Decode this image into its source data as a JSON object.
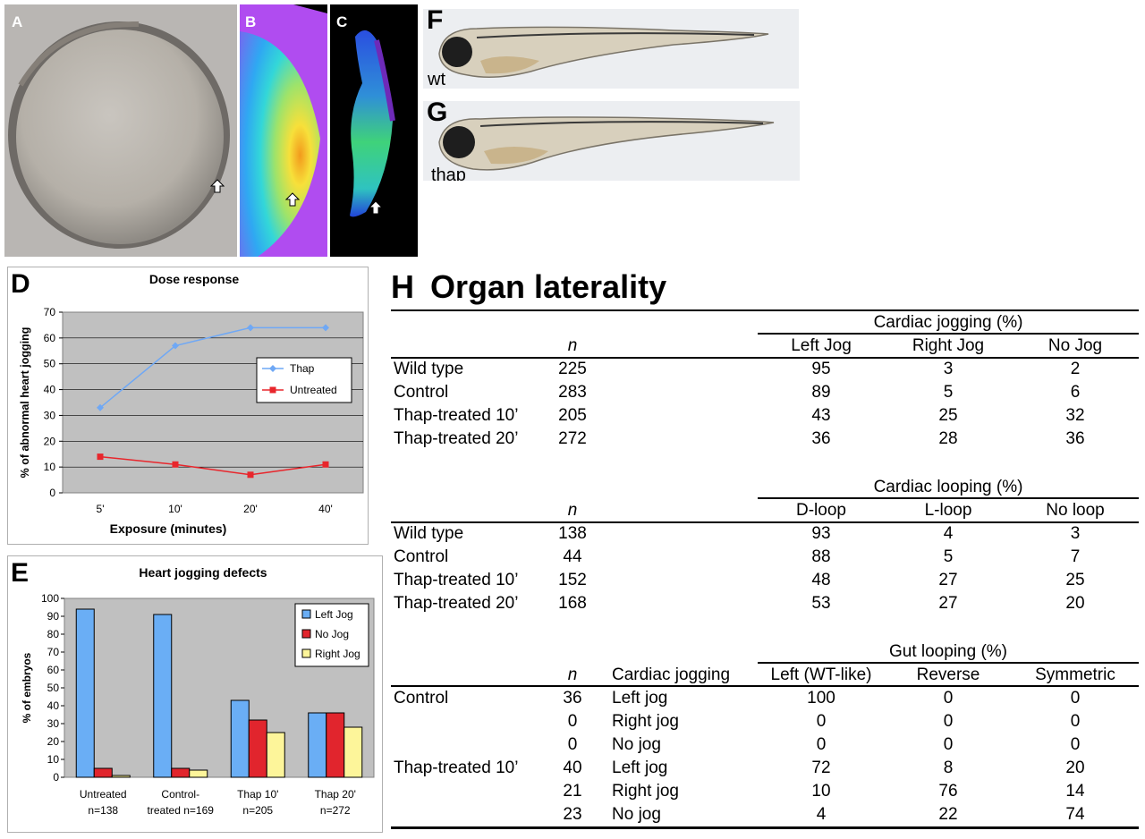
{
  "panels": {
    "a": "A",
    "b": "B",
    "c": "C",
    "d": "D",
    "e": "E",
    "f": "F",
    "g": "G",
    "h": "H"
  },
  "fish_labels": {
    "wt": "wt",
    "thap": "thap"
  },
  "colors": {
    "thap_line": "#6fa8f5",
    "untreated_line": "#e8262c",
    "bar_left_jog": "#6aaef5",
    "bar_no_jog": "#e1252d",
    "bar_right_jog": "#fdf59a",
    "plot_bg": "#c0c0c0"
  },
  "chart_data": [
    {
      "type": "line",
      "title": "Dose response",
      "xlabel": "Exposure (minutes)",
      "ylabel": "% of abnormal heart jogging",
      "categories": [
        "5'",
        "10'",
        "20'",
        "40'"
      ],
      "ylim": [
        0,
        70
      ],
      "yticks": [
        "0",
        "10",
        "20",
        "30",
        "40",
        "50",
        "60",
        "70"
      ],
      "legend_position": "right",
      "series": [
        {
          "name": "Thap",
          "values": [
            33,
            57,
            64,
            64
          ]
        },
        {
          "name": "Untreated",
          "values": [
            14,
            11,
            7,
            11
          ]
        }
      ]
    },
    {
      "type": "bar",
      "title": "Heart jogging defects",
      "xlabel": "",
      "ylabel": "% of embryos",
      "categories": [
        [
          "Untreated",
          "n=138"
        ],
        [
          "Control-",
          "treated n=169"
        ],
        [
          "Thap 10'",
          "n=205"
        ],
        [
          "Thap 20'",
          "n=272"
        ]
      ],
      "ylim": [
        0,
        100
      ],
      "yticks": [
        "0",
        "10",
        "20",
        "30",
        "40",
        "50",
        "60",
        "70",
        "80",
        "90",
        "100"
      ],
      "legend_position": "top-right",
      "series": [
        {
          "name": "Left Jog",
          "values": [
            94,
            91,
            43,
            36
          ]
        },
        {
          "name": "No Jog",
          "values": [
            5,
            5,
            32,
            36
          ]
        },
        {
          "name": "Right Jog",
          "values": [
            1,
            4,
            25,
            28
          ]
        }
      ]
    }
  ],
  "table_h": {
    "title": "Organ laterality",
    "jogging": {
      "group_header": "Cardiac jogging (%)",
      "n_header": "n",
      "columns": [
        "Left Jog",
        "Right Jog",
        "No Jog"
      ],
      "rows": [
        {
          "label": "Wild type",
          "n": "225",
          "values": [
            "95",
            "3",
            "2"
          ]
        },
        {
          "label": "Control",
          "n": "283",
          "values": [
            "89",
            "5",
            "6"
          ]
        },
        {
          "label": "Thap-treated 10’",
          "n": "205",
          "values": [
            "43",
            "25",
            "32"
          ]
        },
        {
          "label": "Thap-treated 20’",
          "n": "272",
          "values": [
            "36",
            "28",
            "36"
          ]
        }
      ]
    },
    "looping": {
      "group_header": "Cardiac looping (%)",
      "n_header": "n",
      "columns": [
        "D-loop",
        "L-loop",
        "No loop"
      ],
      "rows": [
        {
          "label": "Wild type",
          "n": "138",
          "values": [
            "93",
            "4",
            "3"
          ]
        },
        {
          "label": "Control",
          "n": "44",
          "values": [
            "88",
            "5",
            "7"
          ]
        },
        {
          "label": "Thap-treated 10’",
          "n": "152",
          "values": [
            "48",
            "27",
            "25"
          ]
        },
        {
          "label": "Thap-treated 20’",
          "n": "168",
          "values": [
            "53",
            "27",
            "20"
          ]
        }
      ]
    },
    "gut": {
      "group_header": "Gut looping (%)",
      "n_header": "n",
      "sub_header": "Cardiac jogging",
      "columns": [
        "Left (WT-like)",
        "Reverse",
        "Symmetric"
      ],
      "rows": [
        {
          "label": "Control",
          "n": "36",
          "jog": "Left jog",
          "values": [
            "100",
            "0",
            "0"
          ]
        },
        {
          "label": "",
          "n": "0",
          "jog": "Right jog",
          "values": [
            "0",
            "0",
            "0"
          ]
        },
        {
          "label": "",
          "n": "0",
          "jog": "No jog",
          "values": [
            "0",
            "0",
            "0"
          ]
        },
        {
          "label": "Thap-treated 10’",
          "n": "40",
          "jog": "Left jog",
          "values": [
            "72",
            "8",
            "20"
          ]
        },
        {
          "label": "",
          "n": "21",
          "jog": "Right jog",
          "values": [
            "10",
            "76",
            "14"
          ]
        },
        {
          "label": "",
          "n": "23",
          "jog": "No jog",
          "values": [
            "4",
            "22",
            "74"
          ]
        }
      ]
    }
  }
}
